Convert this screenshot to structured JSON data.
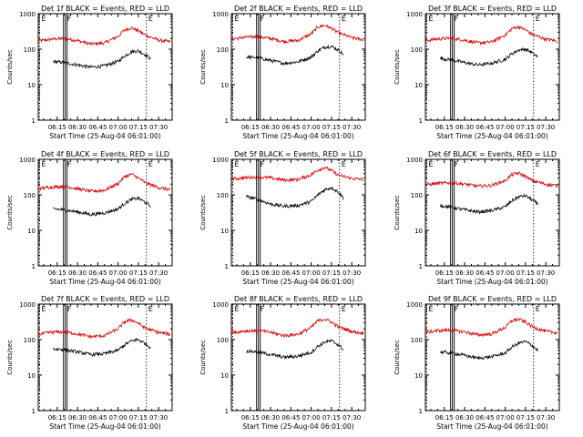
{
  "figure": {
    "grid_rows": 3,
    "grid_cols": 3,
    "colors": {
      "events": "#000000",
      "lld": "#dd0000",
      "axes": "#000000",
      "background": "#ffffff"
    }
  },
  "chart_data": [
    {
      "type": "line",
      "title": "Det 1f BLACK = Events, RED = LLD",
      "xlabel": "Start Time (25-Aug-04 06:01:00)",
      "ylabel": "Counts/sec",
      "yscale": "log",
      "ylim": [
        1,
        1000
      ],
      "y_tick_labels": [
        "1",
        "10",
        "100",
        "1000"
      ],
      "xlim": [
        "06:01",
        "07:40"
      ],
      "x_tick_labels": [
        "06:15",
        "06:30",
        "06:45",
        "07:00",
        "07:15",
        "07:30"
      ],
      "markers": [
        {
          "label": "E",
          "time": "06:02"
        },
        {
          "label": "F",
          "time": "06:21"
        },
        {
          "label": "E",
          "time": "07:21"
        }
      ],
      "series": [
        {
          "name": "LLD",
          "color": "#dd0000",
          "x": [
            "06:01",
            "06:10",
            "06:20",
            "06:30",
            "06:40",
            "06:50",
            "07:00",
            "07:05",
            "07:10",
            "07:15",
            "07:20",
            "07:30",
            "07:39"
          ],
          "y": [
            170,
            190,
            200,
            175,
            140,
            150,
            230,
            350,
            400,
            330,
            250,
            180,
            160
          ]
        },
        {
          "name": "Events",
          "color": "#000000",
          "x": [
            "06:12",
            "06:20",
            "06:30",
            "06:40",
            "06:50",
            "07:00",
            "07:05",
            "07:10",
            "07:15",
            "07:20",
            "07:24"
          ],
          "y": [
            45,
            42,
            36,
            31,
            34,
            45,
            65,
            85,
            90,
            70,
            55
          ]
        }
      ]
    },
    {
      "type": "line",
      "title": "Det 2f BLACK = Events, RED = LLD",
      "xlabel": "Start Time (25-Aug-04 06:01:00)",
      "ylabel": "Counts/sec",
      "yscale": "log",
      "ylim": [
        1,
        1000
      ],
      "y_tick_labels": [
        "1",
        "10",
        "100",
        "1000"
      ],
      "xlim": [
        "06:01",
        "07:40"
      ],
      "x_tick_labels": [
        "06:15",
        "06:30",
        "06:45",
        "07:00",
        "07:15",
        "07:30"
      ],
      "markers": [
        {
          "label": "E",
          "time": "06:02"
        },
        {
          "label": "F",
          "time": "06:21"
        },
        {
          "label": "E",
          "time": "07:21"
        }
      ],
      "series": [
        {
          "name": "LLD",
          "color": "#dd0000",
          "x": [
            "06:01",
            "06:10",
            "06:20",
            "06:30",
            "06:40",
            "06:50",
            "07:00",
            "07:05",
            "07:10",
            "07:15",
            "07:20",
            "07:30",
            "07:39"
          ],
          "y": [
            190,
            215,
            225,
            200,
            165,
            175,
            270,
            420,
            470,
            390,
            290,
            210,
            185
          ]
        },
        {
          "name": "Events",
          "color": "#000000",
          "x": [
            "06:12",
            "06:20",
            "06:30",
            "06:40",
            "06:50",
            "07:00",
            "07:05",
            "07:10",
            "07:15",
            "07:20",
            "07:24"
          ],
          "y": [
            60,
            58,
            48,
            40,
            44,
            60,
            90,
            115,
            120,
            95,
            70
          ]
        }
      ]
    },
    {
      "type": "line",
      "title": "Det 3f BLACK = Events, RED = LLD",
      "xlabel": "Start Time (25-Aug-04 06:01:00)",
      "ylabel": "Counts/sec",
      "yscale": "log",
      "ylim": [
        1,
        1000
      ],
      "y_tick_labels": [
        "1",
        "10",
        "100",
        "1000"
      ],
      "xlim": [
        "06:01",
        "07:40"
      ],
      "x_tick_labels": [
        "06:15",
        "06:30",
        "06:45",
        "07:00",
        "07:15",
        "07:30"
      ],
      "markers": [
        {
          "label": "E",
          "time": "06:02"
        },
        {
          "label": "F",
          "time": "06:21"
        },
        {
          "label": "E",
          "time": "07:21"
        }
      ],
      "series": [
        {
          "name": "LLD",
          "color": "#dd0000",
          "x": [
            "06:01",
            "06:10",
            "06:20",
            "06:30",
            "06:40",
            "06:50",
            "07:00",
            "07:05",
            "07:10",
            "07:15",
            "07:20",
            "07:30",
            "07:39"
          ],
          "y": [
            175,
            195,
            205,
            180,
            150,
            160,
            250,
            380,
            430,
            350,
            260,
            190,
            170
          ]
        },
        {
          "name": "Events",
          "color": "#000000",
          "x": [
            "06:12",
            "06:20",
            "06:30",
            "06:40",
            "06:50",
            "07:00",
            "07:05",
            "07:10",
            "07:15",
            "07:20",
            "07:24"
          ],
          "y": [
            55,
            50,
            42,
            36,
            40,
            52,
            75,
            95,
            100,
            80,
            60
          ]
        }
      ]
    },
    {
      "type": "line",
      "title": "Det 4f BLACK = Events, RED = LLD",
      "xlabel": "Start Time (25-Aug-04 06:01:00)",
      "ylabel": "Counts/sec",
      "yscale": "log",
      "ylim": [
        1,
        1000
      ],
      "y_tick_labels": [
        "1",
        "10",
        "100",
        "1000"
      ],
      "xlim": [
        "06:01",
        "07:40"
      ],
      "x_tick_labels": [
        "06:15",
        "06:30",
        "06:45",
        "07:00",
        "07:15",
        "07:30"
      ],
      "markers": [
        {
          "label": "E",
          "time": "06:02"
        },
        {
          "label": "F",
          "time": "06:21"
        },
        {
          "label": "E",
          "time": "07:21"
        }
      ],
      "series": [
        {
          "name": "LLD",
          "color": "#dd0000",
          "x": [
            "06:01",
            "06:10",
            "06:20",
            "06:30",
            "06:40",
            "06:50",
            "07:00",
            "07:05",
            "07:10",
            "07:15",
            "07:20",
            "07:30",
            "07:39"
          ],
          "y": [
            150,
            165,
            175,
            150,
            125,
            135,
            210,
            330,
            380,
            300,
            220,
            160,
            140
          ]
        },
        {
          "name": "Events",
          "color": "#000000",
          "x": [
            "06:12",
            "06:20",
            "06:30",
            "06:40",
            "06:50",
            "07:00",
            "07:05",
            "07:10",
            "07:15",
            "07:20",
            "07:24"
          ],
          "y": [
            40,
            38,
            33,
            28,
            31,
            40,
            58,
            75,
            80,
            62,
            48
          ]
        }
      ]
    },
    {
      "type": "line",
      "title": "Det 5f BLACK = Events, RED = LLD",
      "xlabel": "Start Time (25-Aug-04 06:01:00)",
      "ylabel": "Counts/sec",
      "yscale": "log",
      "ylim": [
        1,
        1000
      ],
      "y_tick_labels": [
        "1",
        "10",
        "100",
        "1000"
      ],
      "xlim": [
        "06:01",
        "07:40"
      ],
      "x_tick_labels": [
        "06:15",
        "06:30",
        "06:45",
        "07:00",
        "07:15",
        "07:30"
      ],
      "markers": [
        {
          "label": "E",
          "time": "06:02"
        },
        {
          "label": "F",
          "time": "06:21"
        },
        {
          "label": "E",
          "time": "07:21"
        }
      ],
      "series": [
        {
          "name": "LLD",
          "color": "#dd0000",
          "x": [
            "06:01",
            "06:10",
            "06:20",
            "06:30",
            "06:40",
            "06:50",
            "07:00",
            "07:05",
            "07:10",
            "07:15",
            "07:20",
            "07:30",
            "07:39"
          ],
          "y": [
            280,
            300,
            320,
            300,
            260,
            270,
            370,
            500,
            600,
            480,
            360,
            290,
            270
          ]
        },
        {
          "name": "Events",
          "color": "#000000",
          "x": [
            "06:12",
            "06:20",
            "06:30",
            "06:40",
            "06:50",
            "07:00",
            "07:05",
            "07:10",
            "07:15",
            "07:20",
            "07:24"
          ],
          "y": [
            90,
            75,
            55,
            48,
            50,
            65,
            100,
            140,
            160,
            120,
            80
          ]
        }
      ]
    },
    {
      "type": "line",
      "title": "Det 6f BLACK = Events, RED = LLD",
      "xlabel": "Start Time (25-Aug-04 06:01:00)",
      "ylabel": "Counts/sec",
      "yscale": "log",
      "ylim": [
        1,
        1000
      ],
      "y_tick_labels": [
        "1",
        "10",
        "100",
        "1000"
      ],
      "xlim": [
        "06:01",
        "07:40"
      ],
      "x_tick_labels": [
        "06:15",
        "06:30",
        "06:45",
        "07:00",
        "07:15",
        "07:30"
      ],
      "markers": [
        {
          "label": "E",
          "time": "06:02"
        },
        {
          "label": "F",
          "time": "06:21"
        },
        {
          "label": "E",
          "time": "07:21"
        }
      ],
      "series": [
        {
          "name": "LLD",
          "color": "#dd0000",
          "x": [
            "06:01",
            "06:10",
            "06:20",
            "06:30",
            "06:40",
            "06:50",
            "07:00",
            "07:05",
            "07:10",
            "07:15",
            "07:20",
            "07:30",
            "07:39"
          ],
          "y": [
            190,
            210,
            220,
            200,
            175,
            185,
            250,
            370,
            410,
            330,
            250,
            200,
            180
          ]
        },
        {
          "name": "Events",
          "color": "#000000",
          "x": [
            "06:12",
            "06:20",
            "06:30",
            "06:40",
            "06:50",
            "07:00",
            "07:05",
            "07:10",
            "07:15",
            "07:20",
            "07:24"
          ],
          "y": [
            50,
            45,
            38,
            33,
            36,
            46,
            68,
            88,
            95,
            72,
            55
          ]
        }
      ]
    },
    {
      "type": "line",
      "title": "Det 7f BLACK = Events, RED = LLD",
      "xlabel": "Start Time (25-Aug-04 06:01:00)",
      "ylabel": "Counts/sec",
      "yscale": "log",
      "ylim": [
        1,
        1000
      ],
      "y_tick_labels": [
        "1",
        "10",
        "100",
        "1000"
      ],
      "xlim": [
        "06:01",
        "07:40"
      ],
      "x_tick_labels": [
        "06:15",
        "06:30",
        "06:45",
        "07:00",
        "07:15",
        "07:30"
      ],
      "markers": [
        {
          "label": "E",
          "time": "06:02"
        },
        {
          "label": "F",
          "time": "06:21"
        },
        {
          "label": "E",
          "time": "07:21"
        }
      ],
      "series": [
        {
          "name": "LLD",
          "color": "#dd0000",
          "x": [
            "06:01",
            "06:10",
            "06:20",
            "06:30",
            "06:40",
            "06:50",
            "07:00",
            "07:05",
            "07:10",
            "07:15",
            "07:20",
            "07:30",
            "07:39"
          ],
          "y": [
            140,
            160,
            165,
            145,
            120,
            130,
            200,
            320,
            360,
            290,
            210,
            160,
            140
          ]
        },
        {
          "name": "Events",
          "color": "#000000",
          "x": [
            "06:12",
            "06:20",
            "06:30",
            "06:40",
            "06:50",
            "07:00",
            "07:05",
            "07:10",
            "07:15",
            "07:20",
            "07:24"
          ],
          "y": [
            55,
            52,
            45,
            38,
            40,
            50,
            72,
            92,
            100,
            78,
            60
          ]
        }
      ]
    },
    {
      "type": "line",
      "title": "Det 8f BLACK = Events, RED = LLD",
      "xlabel": "Start Time (25-Aug-04 06:01:00)",
      "ylabel": "Counts/sec",
      "yscale": "log",
      "ylim": [
        1,
        1000
      ],
      "y_tick_labels": [
        "1",
        "10",
        "100",
        "1000"
      ],
      "xlim": [
        "06:01",
        "07:40"
      ],
      "x_tick_labels": [
        "06:15",
        "06:30",
        "06:45",
        "07:00",
        "07:15",
        "07:30"
      ],
      "markers": [
        {
          "label": "E",
          "time": "06:02"
        },
        {
          "label": "F",
          "time": "06:21"
        },
        {
          "label": "E",
          "time": "07:21"
        }
      ],
      "series": [
        {
          "name": "LLD",
          "color": "#dd0000",
          "x": [
            "06:01",
            "06:10",
            "06:20",
            "06:30",
            "06:40",
            "06:50",
            "07:00",
            "07:05",
            "07:10",
            "07:15",
            "07:20",
            "07:30",
            "07:39"
          ],
          "y": [
            155,
            175,
            180,
            160,
            130,
            140,
            220,
            340,
            380,
            310,
            230,
            170,
            150
          ]
        },
        {
          "name": "Events",
          "color": "#000000",
          "x": [
            "06:12",
            "06:20",
            "06:30",
            "06:40",
            "06:50",
            "07:00",
            "07:05",
            "07:10",
            "07:15",
            "07:20",
            "07:24"
          ],
          "y": [
            48,
            45,
            38,
            32,
            34,
            44,
            65,
            85,
            92,
            72,
            52
          ]
        }
      ]
    },
    {
      "type": "line",
      "title": "Det 9f BLACK = Events, RED = LLD",
      "xlabel": "Start Time (25-Aug-04 06:01:00)",
      "ylabel": "Counts/sec",
      "yscale": "log",
      "ylim": [
        1,
        1000
      ],
      "y_tick_labels": [
        "1",
        "10",
        "100",
        "1000"
      ],
      "xlim": [
        "06:01",
        "07:40"
      ],
      "x_tick_labels": [
        "06:15",
        "06:30",
        "06:45",
        "07:00",
        "07:15",
        "07:30"
      ],
      "markers": [
        {
          "label": "E",
          "time": "06:02"
        },
        {
          "label": "F",
          "time": "06:21"
        },
        {
          "label": "E",
          "time": "07:21"
        }
      ],
      "series": [
        {
          "name": "LLD",
          "color": "#dd0000",
          "x": [
            "06:01",
            "06:10",
            "06:20",
            "06:30",
            "06:40",
            "06:50",
            "07:00",
            "07:05",
            "07:10",
            "07:15",
            "07:20",
            "07:30",
            "07:39"
          ],
          "y": [
            160,
            180,
            185,
            165,
            135,
            145,
            220,
            340,
            380,
            310,
            230,
            170,
            155
          ]
        },
        {
          "name": "Events",
          "color": "#000000",
          "x": [
            "06:12",
            "06:20",
            "06:30",
            "06:40",
            "06:50",
            "07:00",
            "07:05",
            "07:10",
            "07:15",
            "07:20",
            "07:24"
          ],
          "y": [
            45,
            42,
            36,
            30,
            33,
            42,
            62,
            80,
            88,
            68,
            50
          ]
        }
      ]
    }
  ]
}
